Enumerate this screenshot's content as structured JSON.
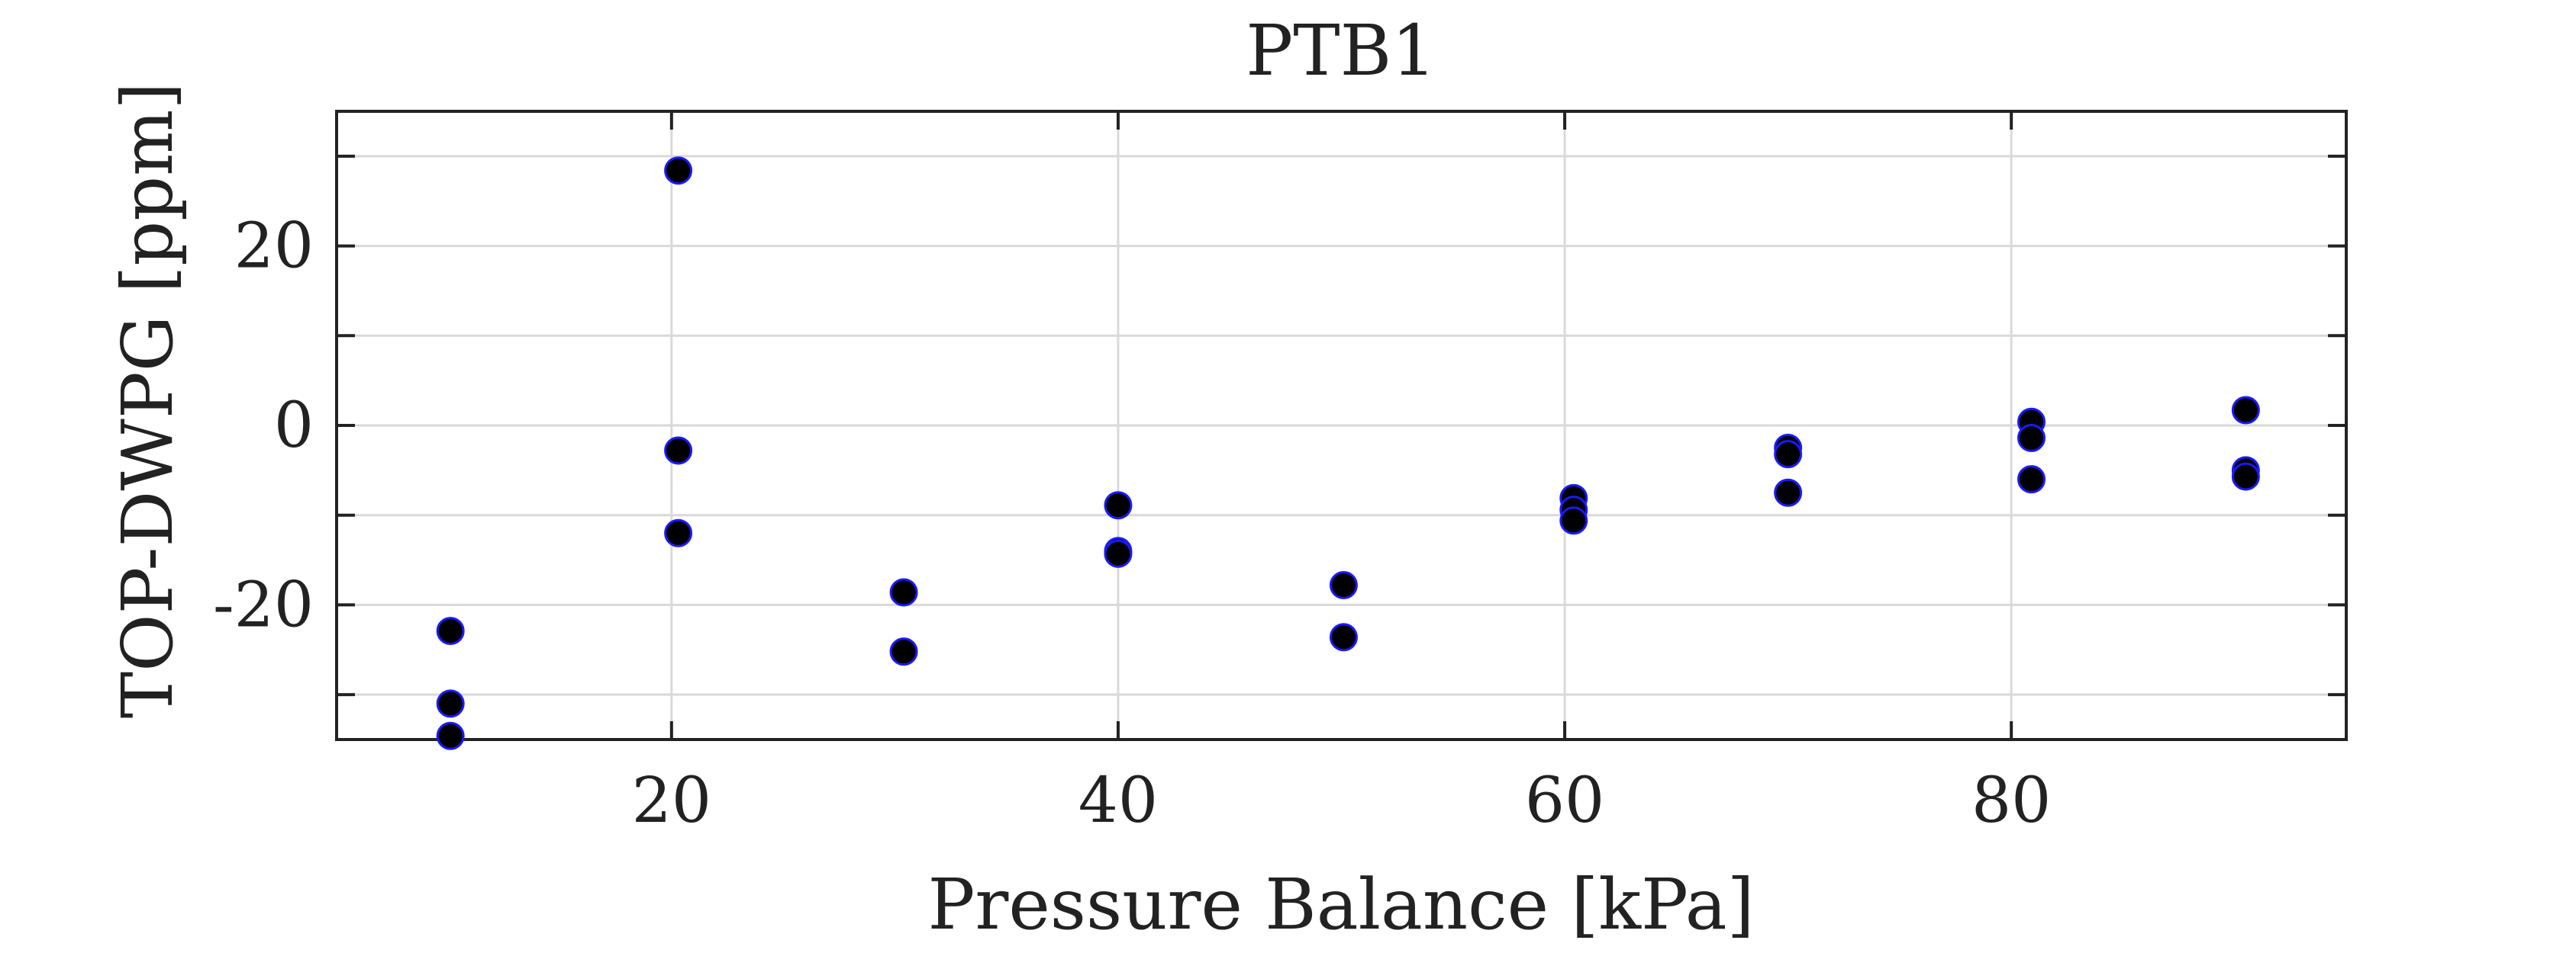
{
  "chart_data": {
    "type": "scatter",
    "title": "PTB1",
    "xlabel": "Pressure Balance [kPa]",
    "ylabel": "TOP-DWPG [ppm]",
    "xlim": [
      5,
      95
    ],
    "ylim": [
      -35,
      35
    ],
    "grid": true,
    "x_ticks": [
      20,
      40,
      60,
      80
    ],
    "x_tick_labels": [
      "20",
      "40",
      "60",
      "80"
    ],
    "y_ticks": [
      -30,
      -20,
      -10,
      0,
      10,
      20,
      30
    ],
    "y_tick_labels": [
      "",
      "-20",
      "",
      "0",
      "",
      "20",
      ""
    ],
    "marker_fill": "#000000",
    "marker_edge": "#1a1aff",
    "series": [
      {
        "points": [
          {
            "x": 10.1,
            "y": -22.9
          },
          {
            "x": 10.1,
            "y": -31.0
          },
          {
            "x": 10.1,
            "y": -34.6
          },
          {
            "x": 20.3,
            "y": 28.4
          },
          {
            "x": 20.3,
            "y": -2.8
          },
          {
            "x": 20.3,
            "y": -12.0
          },
          {
            "x": 30.4,
            "y": -18.6
          },
          {
            "x": 30.4,
            "y": -25.2
          },
          {
            "x": 40.0,
            "y": -8.9
          },
          {
            "x": 40.0,
            "y": -14.0
          },
          {
            "x": 40.0,
            "y": -14.3
          },
          {
            "x": 50.1,
            "y": -17.8
          },
          {
            "x": 50.1,
            "y": -23.6
          },
          {
            "x": 60.4,
            "y": -8.1
          },
          {
            "x": 60.4,
            "y": -9.4
          },
          {
            "x": 60.4,
            "y": -10.6
          },
          {
            "x": 70.0,
            "y": -2.5
          },
          {
            "x": 70.0,
            "y": -3.2
          },
          {
            "x": 70.0,
            "y": -7.5
          },
          {
            "x": 80.9,
            "y": 0.4
          },
          {
            "x": 80.9,
            "y": -1.4
          },
          {
            "x": 80.9,
            "y": -6.0
          },
          {
            "x": 90.5,
            "y": 1.7
          },
          {
            "x": 90.5,
            "y": -5.0
          },
          {
            "x": 90.5,
            "y": -5.7
          }
        ]
      }
    ]
  }
}
